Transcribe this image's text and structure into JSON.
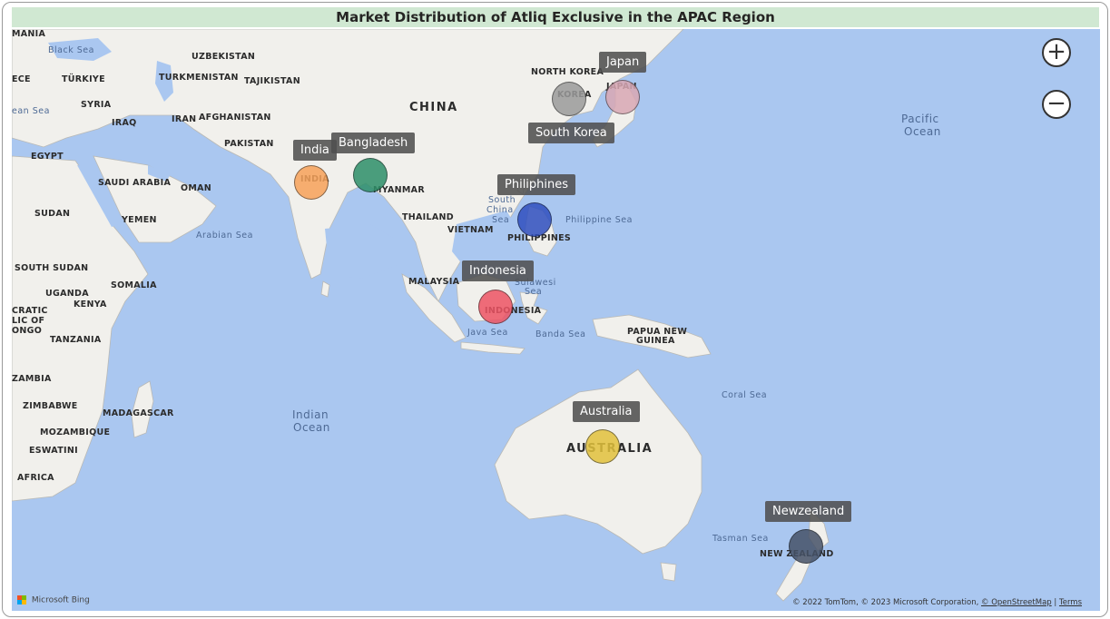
{
  "title": "Market Distribution of Atliq Exclusive in the APAC Region",
  "colors": {
    "ocean": "#aac7f0",
    "land": "#f1f0ec",
    "title_bg": "#d0e8d2"
  },
  "zoom": {
    "in_label": "+",
    "out_label": "−"
  },
  "markets": [
    {
      "name": "India",
      "color": "#f7a25a"
    },
    {
      "name": "Bangladesh",
      "color": "#2e8f69"
    },
    {
      "name": "Japan",
      "color": "#d9a8b4"
    },
    {
      "name": "South Korea",
      "color": "#9a9a9a"
    },
    {
      "name": "Philiphines",
      "color": "#2f4fbf"
    },
    {
      "name": "Indonesia",
      "color": "#ee5464"
    },
    {
      "name": "Australia",
      "color": "#e2c23c"
    },
    {
      "name": "Newzealand",
      "color": "#465268"
    }
  ],
  "map_labels": {
    "countries": [
      "MANIA",
      "UZBEKISTAN",
      "TÜRKIYE",
      "TURKMENISTAN",
      "TAJIKISTAN",
      "NORTH KOREA",
      "ECE",
      "SYRIA",
      "IRAQ",
      "IRAN",
      "AFGHANISTAN",
      "CHINA",
      "KOREA",
      "JAPAN",
      "PAKISTAN",
      "EGYPT",
      "SAUDI ARABIA",
      "OMAN",
      "INDIA",
      "MYANMAR",
      "SUDAN",
      "YEMEN",
      "THAILAND",
      "VIETNAM",
      "PHILIPPINES",
      "SOUTH SUDAN",
      "SOMALIA",
      "UGANDA",
      "KENYA",
      "MALAYSIA",
      "CRATIC",
      "LIC OF",
      "ONGO",
      "TANZANIA",
      "INDONESIA",
      "PAPUA NEW",
      "GUINEA",
      "ZAMBIA",
      "ZIMBABWE",
      "MADAGASCAR",
      "MOZAMBIQUE",
      "ESWATINI",
      "AFRICA",
      "AUSTRALIA",
      "NEW ZEALAND"
    ],
    "waters": [
      "Black Sea",
      "ean Sea",
      "Pacific",
      "Ocean",
      "South",
      "China",
      "Sea",
      "Philippine Sea",
      "Arabian Sea",
      "Sulawesi",
      "Sea",
      "Java Sea",
      "Banda Sea",
      "Coral Sea",
      "Indian",
      "Ocean",
      "Tasman Sea"
    ]
  },
  "branding": "Microsoft Bing",
  "attribution": {
    "text": "© 2022 TomTom, © 2023 Microsoft Corporation,",
    "osm": "© OpenStreetMap",
    "terms": "Terms"
  }
}
